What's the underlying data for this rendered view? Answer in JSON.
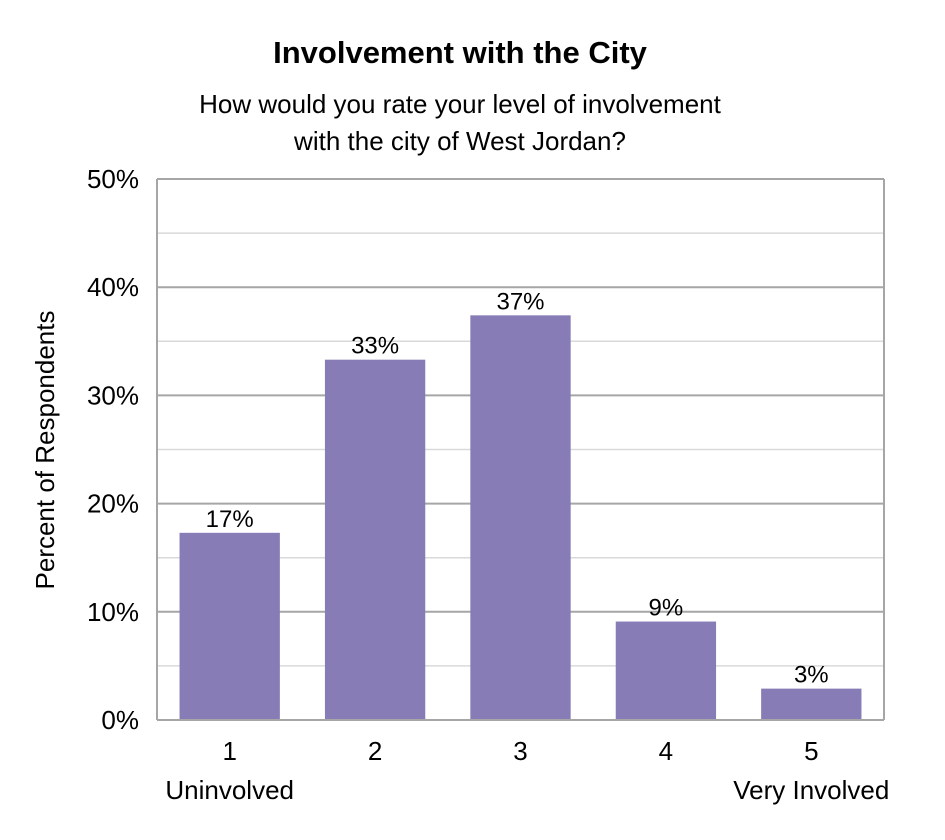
{
  "chart_data": {
    "type": "bar",
    "title": "Involvement with the City",
    "subtitle_lines": [
      "How would you rate your level of involvement",
      "with the city of West Jordan?"
    ],
    "ylabel": "Percent of Respondents",
    "xlabel": "",
    "categories": [
      "1",
      "2",
      "3",
      "4",
      "5"
    ],
    "category_sublabels": [
      "Uninvolved",
      "",
      "",
      "",
      "Very Involved"
    ],
    "values": [
      17.3,
      33.3,
      37.4,
      9.1,
      2.9
    ],
    "data_labels": [
      "17%",
      "33%",
      "37%",
      "9%",
      "3%"
    ],
    "ylim": [
      0,
      50
    ],
    "yticks": [
      0,
      10,
      20,
      30,
      40,
      50
    ],
    "ytick_labels": [
      "0%",
      "10%",
      "20%",
      "30%",
      "40%",
      "50%"
    ],
    "grid": true,
    "legend": false,
    "colors": {
      "bar": "#877cb6",
      "gridline_major": "#a6a6a6",
      "gridline_minor": "#d9d9d9",
      "axis": "#a6a6a6"
    }
  }
}
